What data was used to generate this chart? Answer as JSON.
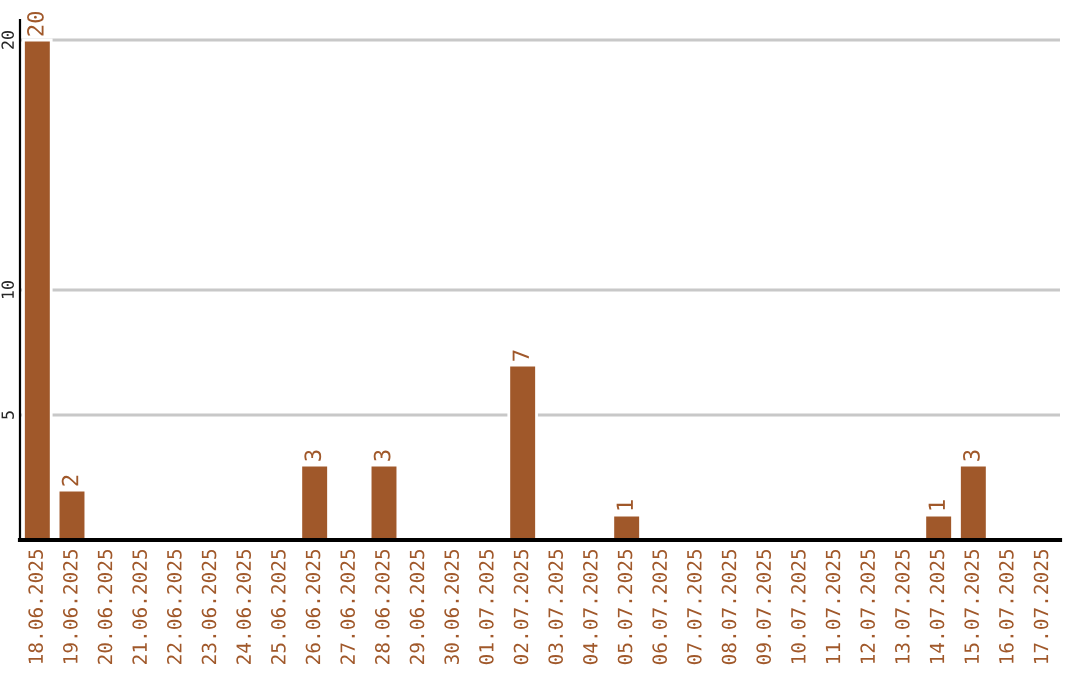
{
  "chart_data": {
    "type": "bar",
    "categories": [
      "18.06.2025",
      "19.06.2025",
      "20.06.2025",
      "21.06.2025",
      "22.06.2025",
      "23.06.2025",
      "24.06.2025",
      "25.06.2025",
      "26.06.2025",
      "27.06.2025",
      "28.06.2025",
      "29.06.2025",
      "30.06.2025",
      "01.07.2025",
      "02.07.2025",
      "03.07.2025",
      "04.07.2025",
      "05.07.2025",
      "06.07.2025",
      "07.07.2025",
      "08.07.2025",
      "09.07.2025",
      "10.07.2025",
      "11.07.2025",
      "12.07.2025",
      "13.07.2025",
      "14.07.2025",
      "15.07.2025",
      "16.07.2025",
      "17.07.2025"
    ],
    "values": [
      20,
      2,
      null,
      null,
      null,
      null,
      null,
      null,
      3,
      null,
      3,
      null,
      null,
      null,
      7,
      null,
      null,
      1,
      null,
      null,
      null,
      null,
      null,
      null,
      null,
      null,
      1,
      3,
      null,
      null
    ],
    "value_labels": [
      "20",
      "2",
      null,
      null,
      null,
      null,
      null,
      null,
      "3",
      null,
      "3",
      null,
      null,
      null,
      "7",
      null,
      null,
      "1",
      null,
      null,
      null,
      null,
      null,
      null,
      null,
      null,
      "1",
      "3",
      null,
      null
    ],
    "color": "#a0582a",
    "ylim": [
      0,
      20.8
    ],
    "yticks": [
      5,
      10,
      20
    ],
    "grid": "y"
  }
}
